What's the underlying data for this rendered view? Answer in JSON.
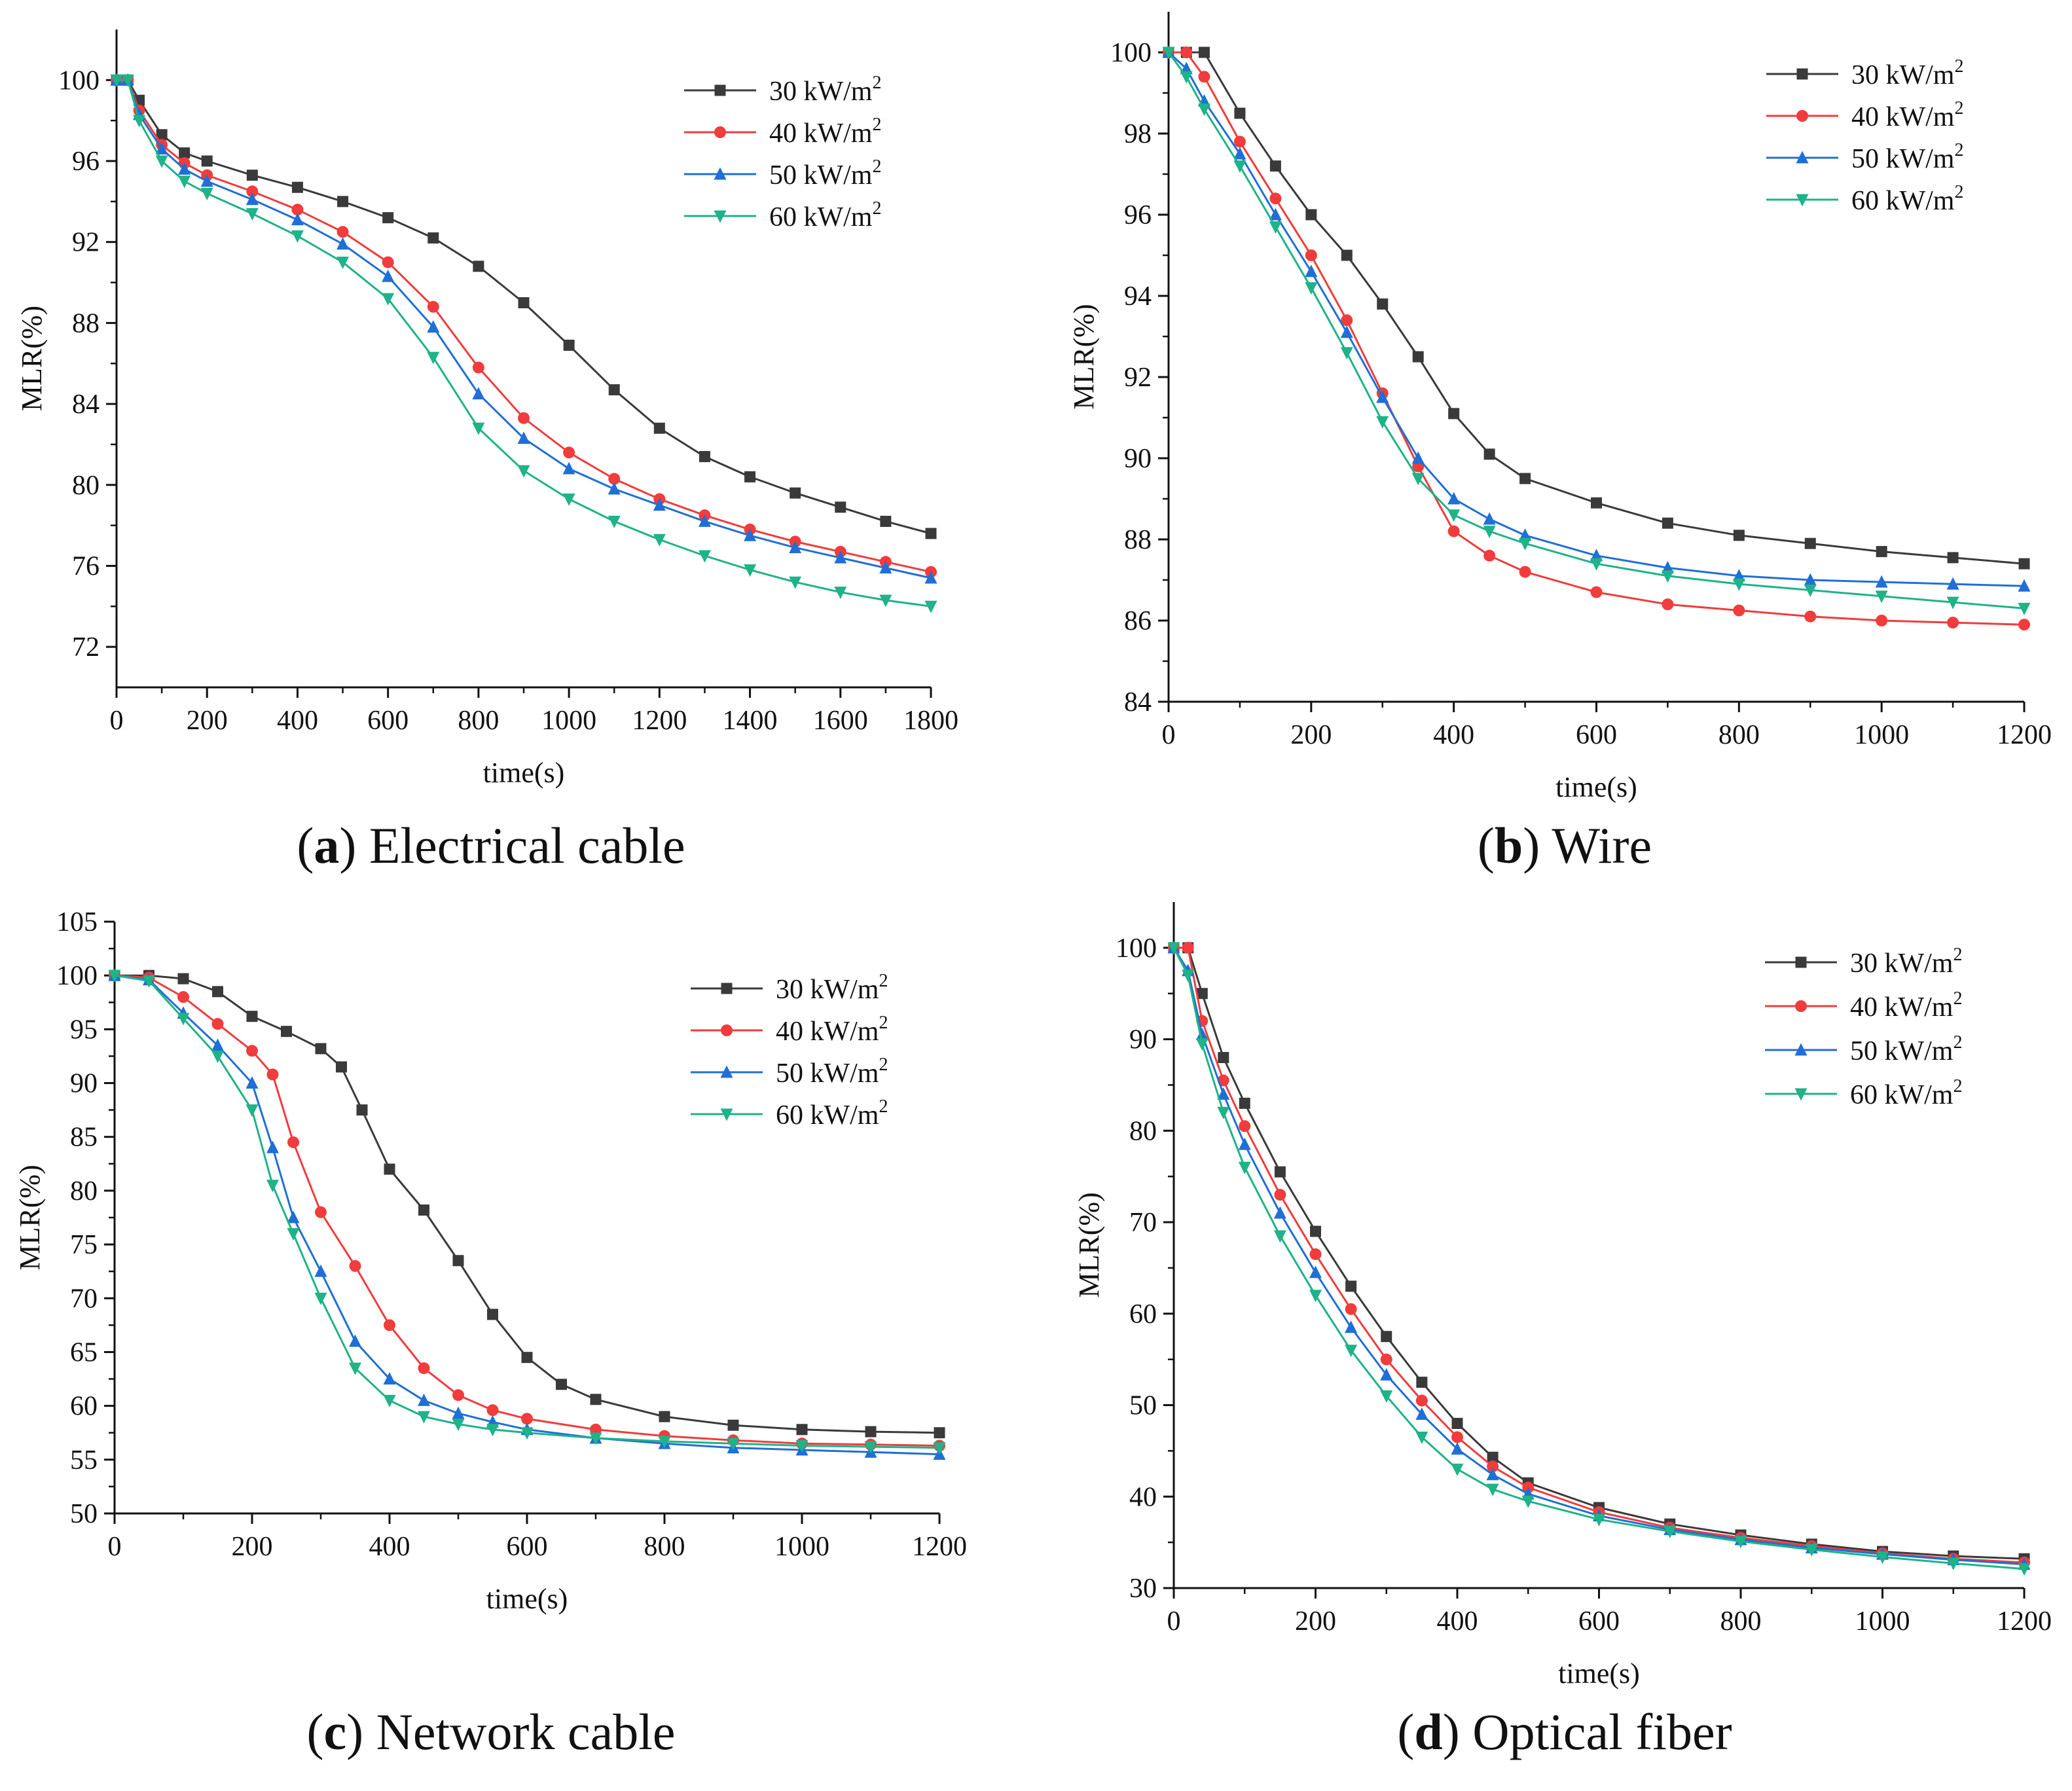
{
  "chart_data": [
    {
      "type": "line",
      "panel_label": "a",
      "caption": "Electrical cable",
      "xlabel": "time(s)",
      "ylabel": "MLR(%)",
      "xlim": [
        0,
        1800
      ],
      "ylim": [
        70,
        102.5
      ],
      "xticks": [
        0,
        200,
        400,
        600,
        800,
        1000,
        1200,
        1400,
        1600,
        1800
      ],
      "yticks": [
        72,
        76,
        80,
        84,
        88,
        92,
        96,
        100
      ],
      "legend_position": "top-right",
      "series": [
        {
          "name": "30 kW/m",
          "sup": "2",
          "color": "#3a3a3a",
          "marker": "square",
          "x": [
            0,
            25,
            50,
            100,
            150,
            200,
            300,
            400,
            500,
            600,
            700,
            800,
            900,
            1000,
            1100,
            1200,
            1300,
            1400,
            1500,
            1600,
            1700,
            1800
          ],
          "y": [
            100,
            100,
            99,
            97.3,
            96.4,
            96,
            95.3,
            94.7,
            94.0,
            93.2,
            92.2,
            90.8,
            89.0,
            86.9,
            84.7,
            82.8,
            81.4,
            80.4,
            79.6,
            78.9,
            78.2,
            77.6
          ]
        },
        {
          "name": "40 kW/m",
          "sup": "2",
          "color": "#f03c3c",
          "marker": "circle",
          "x": [
            0,
            25,
            50,
            100,
            150,
            200,
            300,
            400,
            500,
            600,
            700,
            800,
            900,
            1000,
            1100,
            1200,
            1300,
            1400,
            1500,
            1600,
            1700,
            1800
          ],
          "y": [
            100,
            100,
            98.5,
            96.8,
            95.9,
            95.3,
            94.5,
            93.6,
            92.5,
            91.0,
            88.8,
            85.8,
            83.3,
            81.6,
            80.3,
            79.3,
            78.5,
            77.8,
            77.2,
            76.7,
            76.2,
            75.7
          ]
        },
        {
          "name": "50 kW/m",
          "sup": "2",
          "color": "#1f6fd6",
          "marker": "triangle-up",
          "x": [
            0,
            25,
            50,
            100,
            150,
            200,
            300,
            400,
            500,
            600,
            700,
            800,
            900,
            1000,
            1100,
            1200,
            1300,
            1400,
            1500,
            1600,
            1700,
            1800
          ],
          "y": [
            100,
            100,
            98.3,
            96.6,
            95.6,
            95.0,
            94.1,
            93.1,
            91.9,
            90.3,
            87.8,
            84.5,
            82.3,
            80.8,
            79.8,
            79.0,
            78.2,
            77.5,
            76.9,
            76.4,
            75.9,
            75.4
          ]
        },
        {
          "name": "60 kW/m",
          "sup": "2",
          "color": "#1eb388",
          "marker": "triangle-down",
          "x": [
            0,
            25,
            50,
            100,
            150,
            200,
            300,
            400,
            500,
            600,
            700,
            800,
            900,
            1000,
            1100,
            1200,
            1300,
            1400,
            1500,
            1600,
            1700,
            1800
          ],
          "y": [
            100,
            100,
            98.0,
            96.0,
            95.0,
            94.4,
            93.4,
            92.3,
            91.0,
            89.2,
            86.3,
            82.8,
            80.7,
            79.3,
            78.2,
            77.3,
            76.5,
            75.8,
            75.2,
            74.7,
            74.3,
            74.0
          ]
        }
      ]
    },
    {
      "type": "line",
      "panel_label": "b",
      "caption": "Wire",
      "xlabel": "time(s)",
      "ylabel": "MLR(%)",
      "xlim": [
        0,
        1200
      ],
      "ylim": [
        84,
        101
      ],
      "xticks": [
        0,
        200,
        400,
        600,
        800,
        1000,
        1200
      ],
      "yticks": [
        84,
        86,
        88,
        90,
        92,
        94,
        96,
        98,
        100
      ],
      "legend_position": "top-right",
      "series": [
        {
          "name": "30 kW/m",
          "sup": "2",
          "color": "#3a3a3a",
          "marker": "square",
          "x": [
            0,
            25,
            50,
            100,
            150,
            200,
            250,
            300,
            350,
            400,
            450,
            500,
            600,
            700,
            800,
            900,
            1000,
            1100,
            1200
          ],
          "y": [
            100,
            100,
            100,
            98.5,
            97.2,
            96.0,
            95.0,
            93.8,
            92.5,
            91.1,
            90.1,
            89.5,
            88.9,
            88.4,
            88.1,
            87.9,
            87.7,
            87.55,
            87.4
          ]
        },
        {
          "name": "40 kW/m",
          "sup": "2",
          "color": "#f03c3c",
          "marker": "circle",
          "x": [
            0,
            25,
            50,
            100,
            150,
            200,
            250,
            300,
            350,
            400,
            450,
            500,
            600,
            700,
            800,
            900,
            1000,
            1100,
            1200
          ],
          "y": [
            100,
            100,
            99.4,
            97.8,
            96.4,
            95.0,
            93.4,
            91.6,
            89.8,
            88.2,
            87.6,
            87.2,
            86.7,
            86.4,
            86.25,
            86.1,
            86.0,
            85.95,
            85.9
          ]
        },
        {
          "name": "50 kW/m",
          "sup": "2",
          "color": "#1f6fd6",
          "marker": "triangle-up",
          "x": [
            0,
            25,
            50,
            100,
            150,
            200,
            250,
            300,
            350,
            400,
            450,
            500,
            600,
            700,
            800,
            900,
            1000,
            1100,
            1200
          ],
          "y": [
            100,
            99.6,
            98.8,
            97.5,
            96.0,
            94.6,
            93.1,
            91.5,
            90.0,
            89.0,
            88.5,
            88.1,
            87.6,
            87.3,
            87.1,
            87.0,
            86.95,
            86.9,
            86.85
          ]
        },
        {
          "name": "60 kW/m",
          "sup": "2",
          "color": "#1eb388",
          "marker": "triangle-down",
          "x": [
            0,
            25,
            50,
            100,
            150,
            200,
            250,
            300,
            350,
            400,
            450,
            500,
            600,
            700,
            800,
            900,
            1000,
            1100,
            1200
          ],
          "y": [
            100,
            99.4,
            98.6,
            97.2,
            95.7,
            94.2,
            92.6,
            90.9,
            89.5,
            88.6,
            88.2,
            87.9,
            87.4,
            87.1,
            86.9,
            86.75,
            86.6,
            86.45,
            86.3
          ]
        }
      ]
    },
    {
      "type": "line",
      "panel_label": "c",
      "caption": "Network cable",
      "xlabel": "time(s)",
      "ylabel": "MLR(%)",
      "xlim": [
        0,
        1200
      ],
      "ylim": [
        50,
        105
      ],
      "xticks": [
        0,
        200,
        400,
        600,
        800,
        1000,
        1200
      ],
      "yticks": [
        50,
        55,
        60,
        65,
        70,
        75,
        80,
        85,
        90,
        95,
        100,
        105
      ],
      "legend_position": "top-right",
      "series": [
        {
          "name": "30 kW/m",
          "sup": "2",
          "color": "#3a3a3a",
          "marker": "square",
          "x": [
            0,
            50,
            100,
            150,
            200,
            250,
            300,
            330,
            360,
            400,
            450,
            500,
            550,
            600,
            650,
            700,
            800,
            900,
            1000,
            1100,
            1200
          ],
          "y": [
            100,
            100,
            99.7,
            98.5,
            96.2,
            94.8,
            93.2,
            91.5,
            87.5,
            82.0,
            78.2,
            73.5,
            68.5,
            64.5,
            62.0,
            60.6,
            59.0,
            58.2,
            57.8,
            57.6,
            57.5
          ]
        },
        {
          "name": "40 kW/m",
          "sup": "2",
          "color": "#f03c3c",
          "marker": "circle",
          "x": [
            0,
            50,
            100,
            150,
            200,
            230,
            260,
            300,
            350,
            400,
            450,
            500,
            550,
            600,
            700,
            800,
            900,
            1000,
            1100,
            1200
          ],
          "y": [
            100,
            99.8,
            98.0,
            95.5,
            93.0,
            90.8,
            84.5,
            78.0,
            73.0,
            67.5,
            63.5,
            61.0,
            59.6,
            58.8,
            57.8,
            57.2,
            56.8,
            56.5,
            56.4,
            56.3
          ]
        },
        {
          "name": "50 kW/m",
          "sup": "2",
          "color": "#1f6fd6",
          "marker": "triangle-up",
          "x": [
            0,
            50,
            100,
            150,
            200,
            230,
            260,
            300,
            350,
            400,
            450,
            500,
            550,
            600,
            700,
            800,
            900,
            1000,
            1100,
            1200
          ],
          "y": [
            100,
            99.6,
            96.5,
            93.5,
            90.0,
            84.0,
            77.5,
            72.5,
            66.0,
            62.5,
            60.5,
            59.3,
            58.5,
            57.8,
            57.0,
            56.5,
            56.1,
            55.9,
            55.7,
            55.5
          ]
        },
        {
          "name": "60 kW/m",
          "sup": "2",
          "color": "#1eb388",
          "marker": "triangle-down",
          "x": [
            0,
            50,
            100,
            150,
            200,
            230,
            260,
            300,
            350,
            400,
            450,
            500,
            550,
            600,
            700,
            800,
            900,
            1000,
            1100,
            1200
          ],
          "y": [
            100,
            99.5,
            96.0,
            92.5,
            87.5,
            80.5,
            76.0,
            70.0,
            63.5,
            60.5,
            59.0,
            58.3,
            57.8,
            57.5,
            57.0,
            56.7,
            56.5,
            56.3,
            56.2,
            56.1
          ]
        }
      ]
    },
    {
      "type": "line",
      "panel_label": "d",
      "caption": "Optical fiber",
      "xlabel": "time(s)",
      "ylabel": "MLR(%)",
      "xlim": [
        0,
        1200
      ],
      "ylim": [
        30,
        105
      ],
      "xticks": [
        0,
        200,
        400,
        600,
        800,
        1000,
        1200
      ],
      "yticks": [
        30,
        40,
        50,
        60,
        70,
        80,
        90,
        100
      ],
      "legend_position": "top-right",
      "series": [
        {
          "name": "30 kW/m",
          "sup": "2",
          "color": "#3a3a3a",
          "marker": "square",
          "x": [
            0,
            20,
            40,
            70,
            100,
            150,
            200,
            250,
            300,
            350,
            400,
            450,
            500,
            600,
            700,
            800,
            900,
            1000,
            1100,
            1200
          ],
          "y": [
            100,
            100,
            95.0,
            88.0,
            83.0,
            75.5,
            69.0,
            63.0,
            57.5,
            52.5,
            48.0,
            44.3,
            41.5,
            38.8,
            37.0,
            35.8,
            34.8,
            34.0,
            33.5,
            33.2
          ]
        },
        {
          "name": "40 kW/m",
          "sup": "2",
          "color": "#f03c3c",
          "marker": "circle",
          "x": [
            0,
            20,
            40,
            70,
            100,
            150,
            200,
            250,
            300,
            350,
            400,
            450,
            500,
            600,
            700,
            800,
            900,
            1000,
            1100,
            1200
          ],
          "y": [
            100,
            100,
            92.0,
            85.5,
            80.5,
            73.0,
            66.5,
            60.5,
            55.0,
            50.5,
            46.5,
            43.3,
            41.0,
            38.3,
            36.6,
            35.5,
            34.6,
            33.8,
            33.2,
            32.8
          ]
        },
        {
          "name": "50 kW/m",
          "sup": "2",
          "color": "#1f6fd6",
          "marker": "triangle-up",
          "x": [
            0,
            20,
            40,
            70,
            100,
            150,
            200,
            250,
            300,
            350,
            400,
            450,
            500,
            600,
            700,
            800,
            900,
            1000,
            1100,
            1200
          ],
          "y": [
            100,
            97.5,
            90.5,
            84.0,
            78.5,
            71.0,
            64.5,
            58.5,
            53.3,
            49.0,
            45.2,
            42.4,
            40.3,
            37.9,
            36.4,
            35.3,
            34.4,
            33.7,
            33.1,
            32.6
          ]
        },
        {
          "name": "60 kW/m",
          "sup": "2",
          "color": "#1eb388",
          "marker": "triangle-down",
          "x": [
            0,
            20,
            40,
            70,
            100,
            150,
            200,
            250,
            300,
            350,
            400,
            450,
            500,
            600,
            700,
            800,
            900,
            1000,
            1100,
            1200
          ],
          "y": [
            100,
            97.0,
            89.5,
            82.0,
            76.0,
            68.5,
            62.0,
            56.0,
            51.0,
            46.5,
            43.0,
            40.8,
            39.5,
            37.5,
            36.2,
            35.1,
            34.2,
            33.4,
            32.7,
            32.1
          ]
        }
      ]
    }
  ]
}
